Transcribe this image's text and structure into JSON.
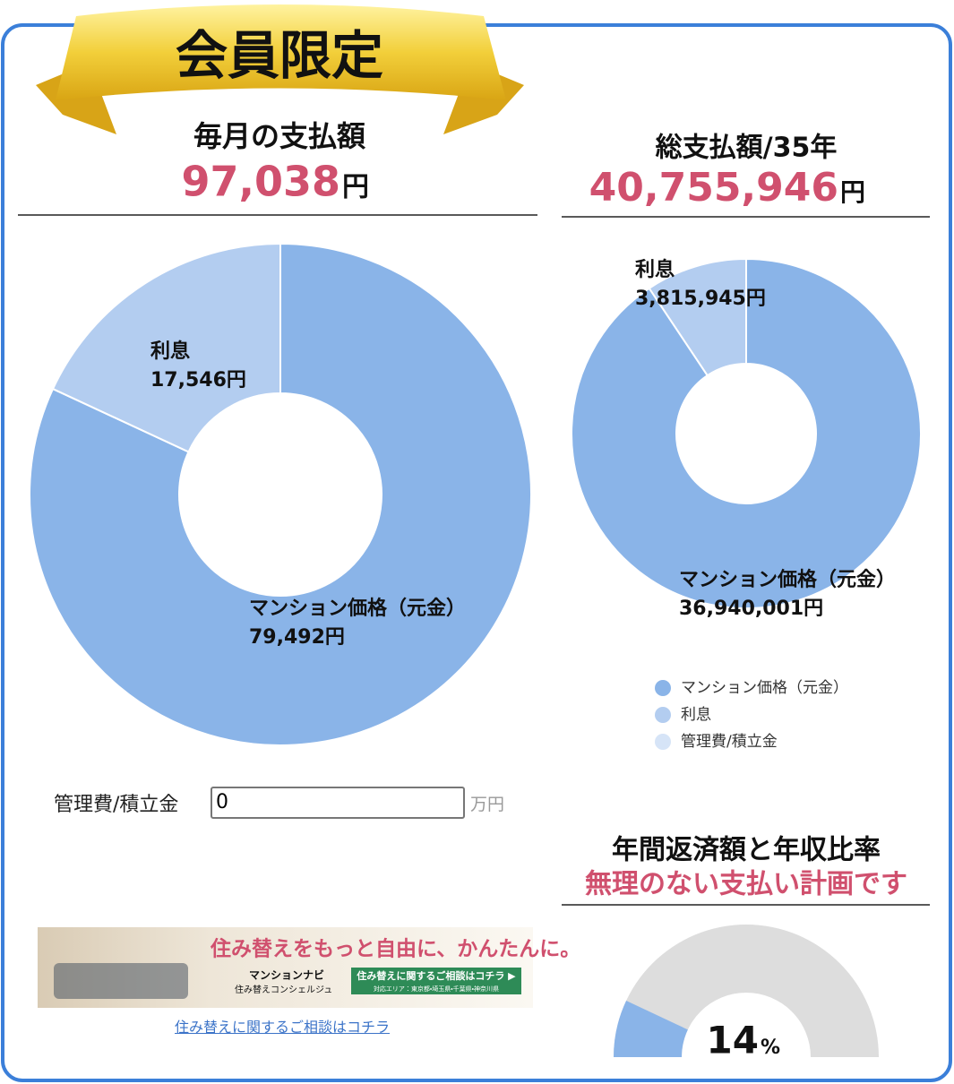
{
  "badge": "会員限定",
  "monthly": {
    "title": "毎月の支払額",
    "amount": "97,038",
    "unit": "円"
  },
  "total": {
    "title": "総支払額/35年",
    "amount": "40,755,946",
    "unit": "円"
  },
  "chart_data": [
    {
      "type": "donut",
      "categories": [
        "マンション価格（元金）",
        "利息"
      ],
      "values": [
        79492,
        17546
      ],
      "value_labels": [
        "79,492円",
        "17,546円"
      ],
      "colors": [
        "#8ab4e8",
        "#b3cdf0"
      ]
    },
    {
      "type": "donut",
      "categories": [
        "マンション価格（元金）",
        "利息"
      ],
      "values": [
        36940001,
        3815945
      ],
      "value_labels": [
        "36,940,001円",
        "3,815,945円"
      ],
      "colors": [
        "#8ab4e8",
        "#b3cdf0"
      ],
      "legend": {
        "position": "bottom",
        "items": [
          {
            "name": "マンション価格（元金）",
            "color": "#8ab4e8"
          },
          {
            "name": "利息",
            "color": "#b3cdf0"
          },
          {
            "name": "管理費/積立金",
            "color": "#d6e4f7"
          }
        ]
      }
    },
    {
      "type": "gauge",
      "title": "年間返済額と年収比率",
      "subtitle": "無理のない支払い計画です",
      "value": 14,
      "unit": "%",
      "range": [
        0,
        100
      ],
      "color": "#8ab4e8",
      "track_color": "#dddddd"
    }
  ],
  "fee_input": {
    "label": "管理費/積立金",
    "value": "0",
    "unit": "万円"
  },
  "banner": {
    "headline": "住み替えをもっと自由に、かんたんに。",
    "brand": "マンションナビ",
    "brand_sub": "住み替えコンシェルジュ",
    "button": "住み替えに関するご相談はコチラ ▶",
    "area": "対応エリア：東京都・埼玉県・千葉県・神奈川県"
  },
  "link": "住み替えに関するご相談はコチラ"
}
